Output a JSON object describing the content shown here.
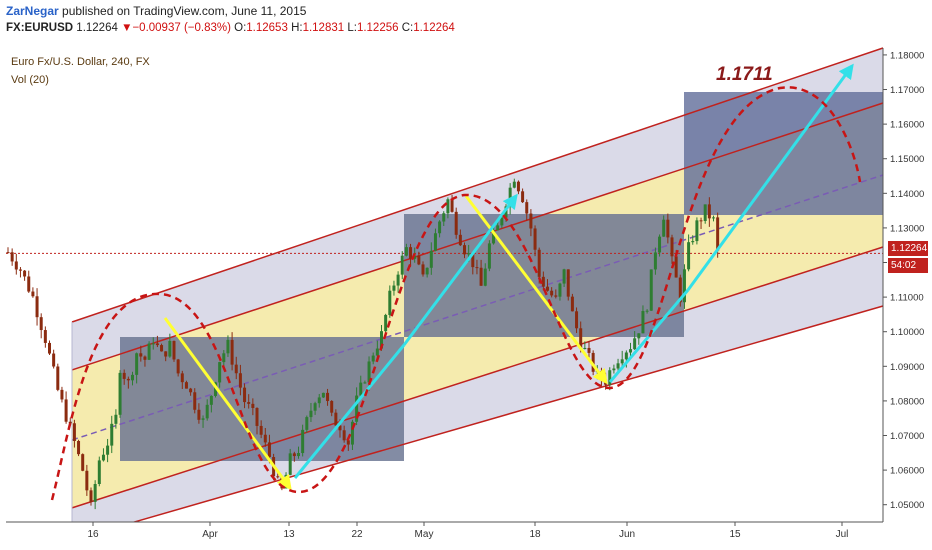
{
  "header": {
    "author": "ZarNegar",
    "published_text": "published on TradingView.com, June 11, 2015",
    "symbol": "FX:EURUSD",
    "last": "1.12264",
    "change": "▼−0.00937 (−0.83%)",
    "open_label": "O:",
    "open": "1.12653",
    "high_label": "H:",
    "high": "1.12831",
    "low_label": "L:",
    "low": "1.12256",
    "close_label": "C:",
    "close": "1.12264"
  },
  "legend": {
    "title": "Euro Fx/U.S. Dollar, 240, FX",
    "volume": "Vol (20)"
  },
  "annotation": {
    "target_label": "1.1711"
  },
  "price_tag": "1.12264",
  "time_tag": "54:02",
  "colors": {
    "up": "#2e7d32",
    "down": "#8b2b10",
    "channel": "#c0221e",
    "yellow_zone": "#f3e7a0",
    "gray_zone": "#d3d3e4",
    "blue_box": "#4a5bb5",
    "arrow_yellow": "#ffff33",
    "arrow_cyan": "#33e0e8",
    "midline": "#7a5cb5"
  },
  "chart_data": {
    "type": "candlestick",
    "instrument": "EURUSD 240",
    "ylim": [
      1.045,
      1.182
    ],
    "y_ticks": [
      "1.18000",
      "1.17000",
      "1.16000",
      "1.15000",
      "1.14000",
      "1.13000",
      "1.12000",
      "1.11000",
      "1.10000",
      "1.09000",
      "1.08000",
      "1.07000",
      "1.06000",
      "1.05000"
    ],
    "x_ticks": [
      "16",
      "Apr",
      "13",
      "22",
      "May",
      "18",
      "Jun",
      "15",
      "Jul"
    ],
    "price_path": [
      [
        0,
        1.123
      ],
      [
        3,
        1.118
      ],
      [
        6,
        1.11
      ],
      [
        9,
        1.098
      ],
      [
        12,
        1.083
      ],
      [
        15,
        1.072
      ],
      [
        18,
        1.06
      ],
      [
        20,
        1.049
      ],
      [
        22,
        1.063
      ],
      [
        24,
        1.068
      ],
      [
        26,
        1.075
      ],
      [
        27,
        1.09
      ],
      [
        29,
        1.085
      ],
      [
        31,
        1.094
      ],
      [
        33,
        1.092
      ],
      [
        35,
        1.098
      ],
      [
        37,
        1.093
      ],
      [
        39,
        1.096
      ],
      [
        41,
        1.088
      ],
      [
        43,
        1.085
      ],
      [
        45,
        1.079
      ],
      [
        47,
        1.074
      ],
      [
        49,
        1.082
      ],
      [
        51,
        1.092
      ],
      [
        53,
        1.096
      ],
      [
        55,
        1.088
      ],
      [
        57,
        1.08
      ],
      [
        59,
        1.076
      ],
      [
        61,
        1.07
      ],
      [
        63,
        1.064
      ],
      [
        65,
        1.056
      ],
      [
        66,
        1.054
      ],
      [
        68,
        1.063
      ],
      [
        70,
        1.066
      ],
      [
        72,
        1.074
      ],
      [
        74,
        1.081
      ],
      [
        76,
        1.083
      ],
      [
        78,
        1.075
      ],
      [
        80,
        1.073
      ],
      [
        82,
        1.068
      ],
      [
        84,
        1.08
      ],
      [
        86,
        1.087
      ],
      [
        88,
        1.094
      ],
      [
        90,
        1.099
      ],
      [
        92,
        1.11
      ],
      [
        94,
        1.118
      ],
      [
        96,
        1.124
      ],
      [
        98,
        1.121
      ],
      [
        100,
        1.115
      ],
      [
        102,
        1.124
      ],
      [
        104,
        1.132
      ],
      [
        106,
        1.138
      ],
      [
        108,
        1.13
      ],
      [
        110,
        1.124
      ],
      [
        112,
        1.12
      ],
      [
        114,
        1.113
      ],
      [
        116,
        1.125
      ],
      [
        118,
        1.13
      ],
      [
        120,
        1.138
      ],
      [
        122,
        1.145
      ],
      [
        124,
        1.139
      ],
      [
        126,
        1.13
      ],
      [
        128,
        1.116
      ],
      [
        130,
        1.112
      ],
      [
        132,
        1.109
      ],
      [
        134,
        1.117
      ],
      [
        136,
        1.105
      ],
      [
        138,
        1.097
      ],
      [
        140,
        1.092
      ],
      [
        142,
        1.087
      ],
      [
        144,
        1.086
      ],
      [
        146,
        1.091
      ],
      [
        148,
        1.094
      ],
      [
        150,
        1.096
      ],
      [
        152,
        1.101
      ],
      [
        154,
        1.108
      ],
      [
        156,
        1.124
      ],
      [
        158,
        1.134
      ],
      [
        160,
        1.12
      ],
      [
        162,
        1.11
      ],
      [
        164,
        1.124
      ],
      [
        166,
        1.131
      ],
      [
        168,
        1.135
      ],
      [
        170,
        1.132
      ],
      [
        171,
        1.1226
      ]
    ],
    "volume": "Vol (20)"
  }
}
